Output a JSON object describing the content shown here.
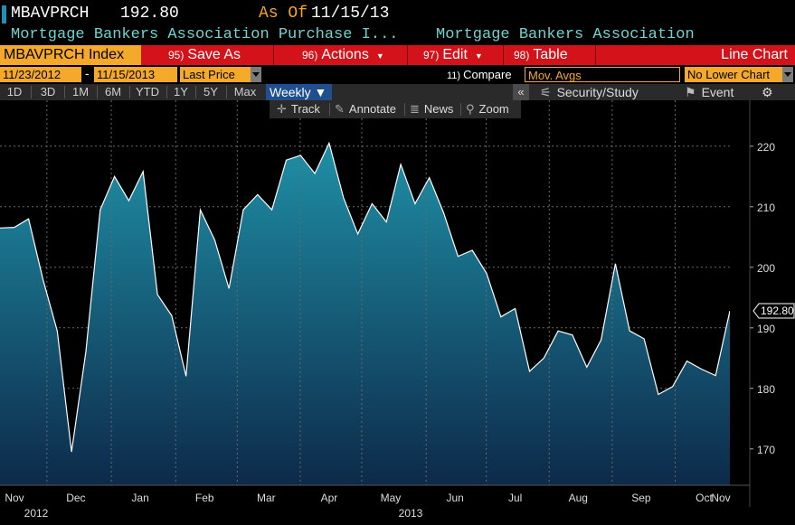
{
  "header": {
    "ticker": "MBAVPRCH",
    "last_price": "192.80",
    "asof_label": "As Of",
    "asof_date": "11/15/13",
    "security_name": "Mortgage Bankers Association Purchase I...",
    "source_name": "Mortgage Bankers Association"
  },
  "toolbar": {
    "index_label": "MBAVPRCH Index",
    "save_num": "95)",
    "save_label": "Save As",
    "actions_num": "96)",
    "actions_label": "Actions",
    "edit_num": "97)",
    "edit_label": "Edit",
    "table_num": "98)",
    "table_label": "Table",
    "chart_type": "Line Chart"
  },
  "range": {
    "start": "11/23/2012",
    "dash": "-",
    "end": "11/15/2013",
    "field": "Last Price",
    "compare_num": "11)",
    "compare_label": "Compare",
    "mov_avgs": "Mov. Avgs",
    "lower_chart": "No Lower Chart"
  },
  "periods": [
    "1D",
    "3D",
    "1M",
    "6M",
    "YTD",
    "1Y",
    "5Y",
    "Max"
  ],
  "frequency": "Weekly ▼",
  "panel": {
    "collapse": "«",
    "security_study": "Security/Study",
    "event": "Event",
    "gear": "⚙"
  },
  "tools": {
    "track": "Track",
    "annotate": "Annotate",
    "news": "News",
    "zoom": "Zoom"
  },
  "colors": {
    "accent_orange": "#f4a92a",
    "toolbar_red": "#d3121a",
    "teal_text": "#6fd3d0",
    "area_top": "#1f8fa6",
    "area_bottom": "#0d2a4a"
  },
  "chart_data": {
    "type": "area",
    "frequency": "weekly",
    "x_range": [
      "2012-11-23",
      "2013-11-15"
    ],
    "ylim": [
      164,
      224
    ],
    "yticks": [
      170,
      180,
      190,
      200,
      210,
      220
    ],
    "last_value_label": "192.80",
    "months": [
      "Nov",
      "Dec",
      "Jan",
      "Feb",
      "Mar",
      "Apr",
      "May",
      "Jun",
      "Jul",
      "Aug",
      "Sep",
      "Oct",
      "Nov"
    ],
    "years": [
      "2012",
      "2013"
    ],
    "values": [
      206.5,
      206.6,
      208.0,
      198.0,
      189.5,
      169.5,
      186.0,
      209.5,
      215.0,
      211.0,
      215.8,
      195.5,
      192.0,
      182.0,
      209.5,
      204.5,
      196.5,
      209.5,
      212.0,
      209.5,
      217.7,
      218.5,
      215.5,
      220.5,
      211.5,
      205.5,
      210.5,
      207.5,
      217.0,
      210.5,
      214.8,
      209.0,
      201.8,
      202.8,
      199.0,
      191.8,
      193.2,
      182.8,
      185.0,
      189.5,
      188.8,
      183.5,
      188.0,
      200.6,
      189.5,
      188.2,
      179.0,
      180.3,
      184.5,
      183.2,
      182.1,
      192.8
    ]
  }
}
